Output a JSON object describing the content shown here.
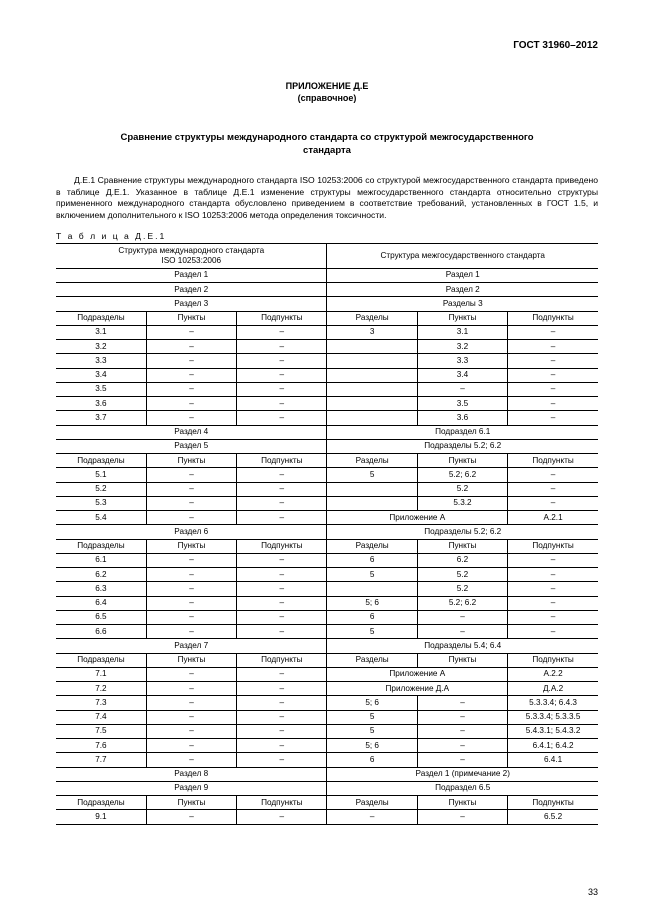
{
  "doc_id": "ГОСТ 31960–2012",
  "appendix_label": "ПРИЛОЖЕНИЕ Д.Е",
  "reference_label": "(справочное)",
  "title_line1": "Сравнение структуры международного стандарта со структурой межгосударственного",
  "title_line2": "стандарта",
  "paragraph": "Д.Е.1 Сравнение структуры международного стандарта ISO 10253:2006 со структурой межгосударственного стандарта приведено в таблице Д.Е.1. Указанное в таблице Д.Е.1 изменение структуры межгосударственного стандарта относительно структуры примененного международного стандарта обусловлено приведением в соответствие требований, установленных в ГОСТ 1.5, и включением дополнительного к ISO 10253:2006 метода определения токсичности.",
  "table_caption": "Т а б л и ц а  Д.Е.1",
  "header_left_line1": "Структура международного стандарта",
  "header_left_line2": "ISO 10253:2006",
  "header_right": "Структура межгосударственного стандарта",
  "col_labels": {
    "subsec": "Подразделы",
    "points": "Пункты",
    "subpoints": "Подпункты",
    "sections": "Разделы"
  },
  "dash": "–",
  "table_rows": [
    {
      "type": "span2",
      "l": "Раздел 1",
      "r": "Раздел 1"
    },
    {
      "type": "span2",
      "l": "Раздел 2",
      "r": "Раздел 2"
    },
    {
      "type": "span2",
      "l": "Раздел 3",
      "r": "Разделы 3"
    },
    {
      "type": "hdr"
    },
    {
      "type": "row6",
      "c": [
        "3.1",
        "–",
        "–",
        "3",
        "3.1",
        "–"
      ]
    },
    {
      "type": "row6",
      "c": [
        "3.2",
        "–",
        "–",
        "",
        "3.2",
        "–"
      ]
    },
    {
      "type": "row6",
      "c": [
        "3.3",
        "–",
        "–",
        "",
        "3.3",
        "–"
      ]
    },
    {
      "type": "row6",
      "c": [
        "3.4",
        "–",
        "–",
        "",
        "3.4",
        "–"
      ]
    },
    {
      "type": "row6",
      "c": [
        "3.5",
        "–",
        "–",
        "",
        "–",
        "–"
      ]
    },
    {
      "type": "row6",
      "c": [
        "3.6",
        "–",
        "–",
        "",
        "3.5",
        "–"
      ]
    },
    {
      "type": "row6",
      "c": [
        "3.7",
        "–",
        "–",
        "",
        "3.6",
        "–"
      ]
    },
    {
      "type": "span2",
      "l": "Раздел 4",
      "r": "Подраздел 6.1"
    },
    {
      "type": "span2",
      "l": "Раздел 5",
      "r": "Подразделы 5.2; 6.2"
    },
    {
      "type": "hdr"
    },
    {
      "type": "row6",
      "c": [
        "5.1",
        "–",
        "–",
        "5",
        "5.2; 6.2",
        "–"
      ]
    },
    {
      "type": "row6",
      "c": [
        "5.2",
        "–",
        "–",
        "",
        "5.2",
        "–"
      ]
    },
    {
      "type": "row6",
      "c": [
        "5.3",
        "–",
        "–",
        "",
        "5.3.2",
        "–"
      ]
    },
    {
      "type": "row_mix",
      "c": [
        "5.4",
        "–",
        "–"
      ],
      "rspan": "Приложение А",
      "rlast": "А.2.1"
    },
    {
      "type": "span2",
      "l": "Раздел 6",
      "r": "Подразделы 5.2; 6.2"
    },
    {
      "type": "hdr"
    },
    {
      "type": "row6",
      "c": [
        "6.1",
        "–",
        "–",
        "6",
        "6.2",
        "–"
      ]
    },
    {
      "type": "row6",
      "c": [
        "6.2",
        "–",
        "–",
        "5",
        "5.2",
        "–"
      ]
    },
    {
      "type": "row6",
      "c": [
        "6.3",
        "–",
        "–",
        "",
        "5.2",
        "–"
      ]
    },
    {
      "type": "row6",
      "c": [
        "6.4",
        "–",
        "–",
        "5; 6",
        "5.2; 6.2",
        "–"
      ]
    },
    {
      "type": "row6",
      "c": [
        "6.5",
        "–",
        "–",
        "6",
        "–",
        "–"
      ]
    },
    {
      "type": "row6",
      "c": [
        "6.6",
        "–",
        "–",
        "5",
        "–",
        "–"
      ]
    },
    {
      "type": "span2",
      "l": "Раздел 7",
      "r": "Подразделы 5.4; 6.4"
    },
    {
      "type": "hdr"
    },
    {
      "type": "row_mix",
      "c": [
        "7.1",
        "–",
        "–"
      ],
      "rspan": "Приложение А",
      "rlast": "А.2.2"
    },
    {
      "type": "row_mix",
      "c": [
        "7.2",
        "–",
        "–"
      ],
      "rspan": "Приложение Д.А",
      "rlast": "Д.А.2"
    },
    {
      "type": "row6",
      "c": [
        "7.3",
        "–",
        "–",
        "5; 6",
        "–",
        "5.3.3.4; 6.4.3"
      ]
    },
    {
      "type": "row6",
      "c": [
        "7.4",
        "–",
        "–",
        "5",
        "–",
        "5.3.3.4; 5.3.3.5"
      ]
    },
    {
      "type": "row6",
      "c": [
        "7.5",
        "–",
        "–",
        "5",
        "–",
        "5.4.3.1; 5.4.3.2"
      ]
    },
    {
      "type": "row6",
      "c": [
        "7.6",
        "–",
        "–",
        "5; 6",
        "–",
        "6.4.1; 6.4.2"
      ]
    },
    {
      "type": "row6",
      "c": [
        "7.7",
        "–",
        "–",
        "6",
        "–",
        "6.4.1"
      ]
    },
    {
      "type": "span2",
      "l": "Раздел 8",
      "r": "Раздел 1 (примечание 2)"
    },
    {
      "type": "span2",
      "l": "Раздел 9",
      "r": "Подраздел 6.5"
    },
    {
      "type": "hdr"
    },
    {
      "type": "row6",
      "c": [
        "9.1",
        "–",
        "–",
        "–",
        "–",
        "6.5.2"
      ]
    }
  ],
  "page_number": "33"
}
